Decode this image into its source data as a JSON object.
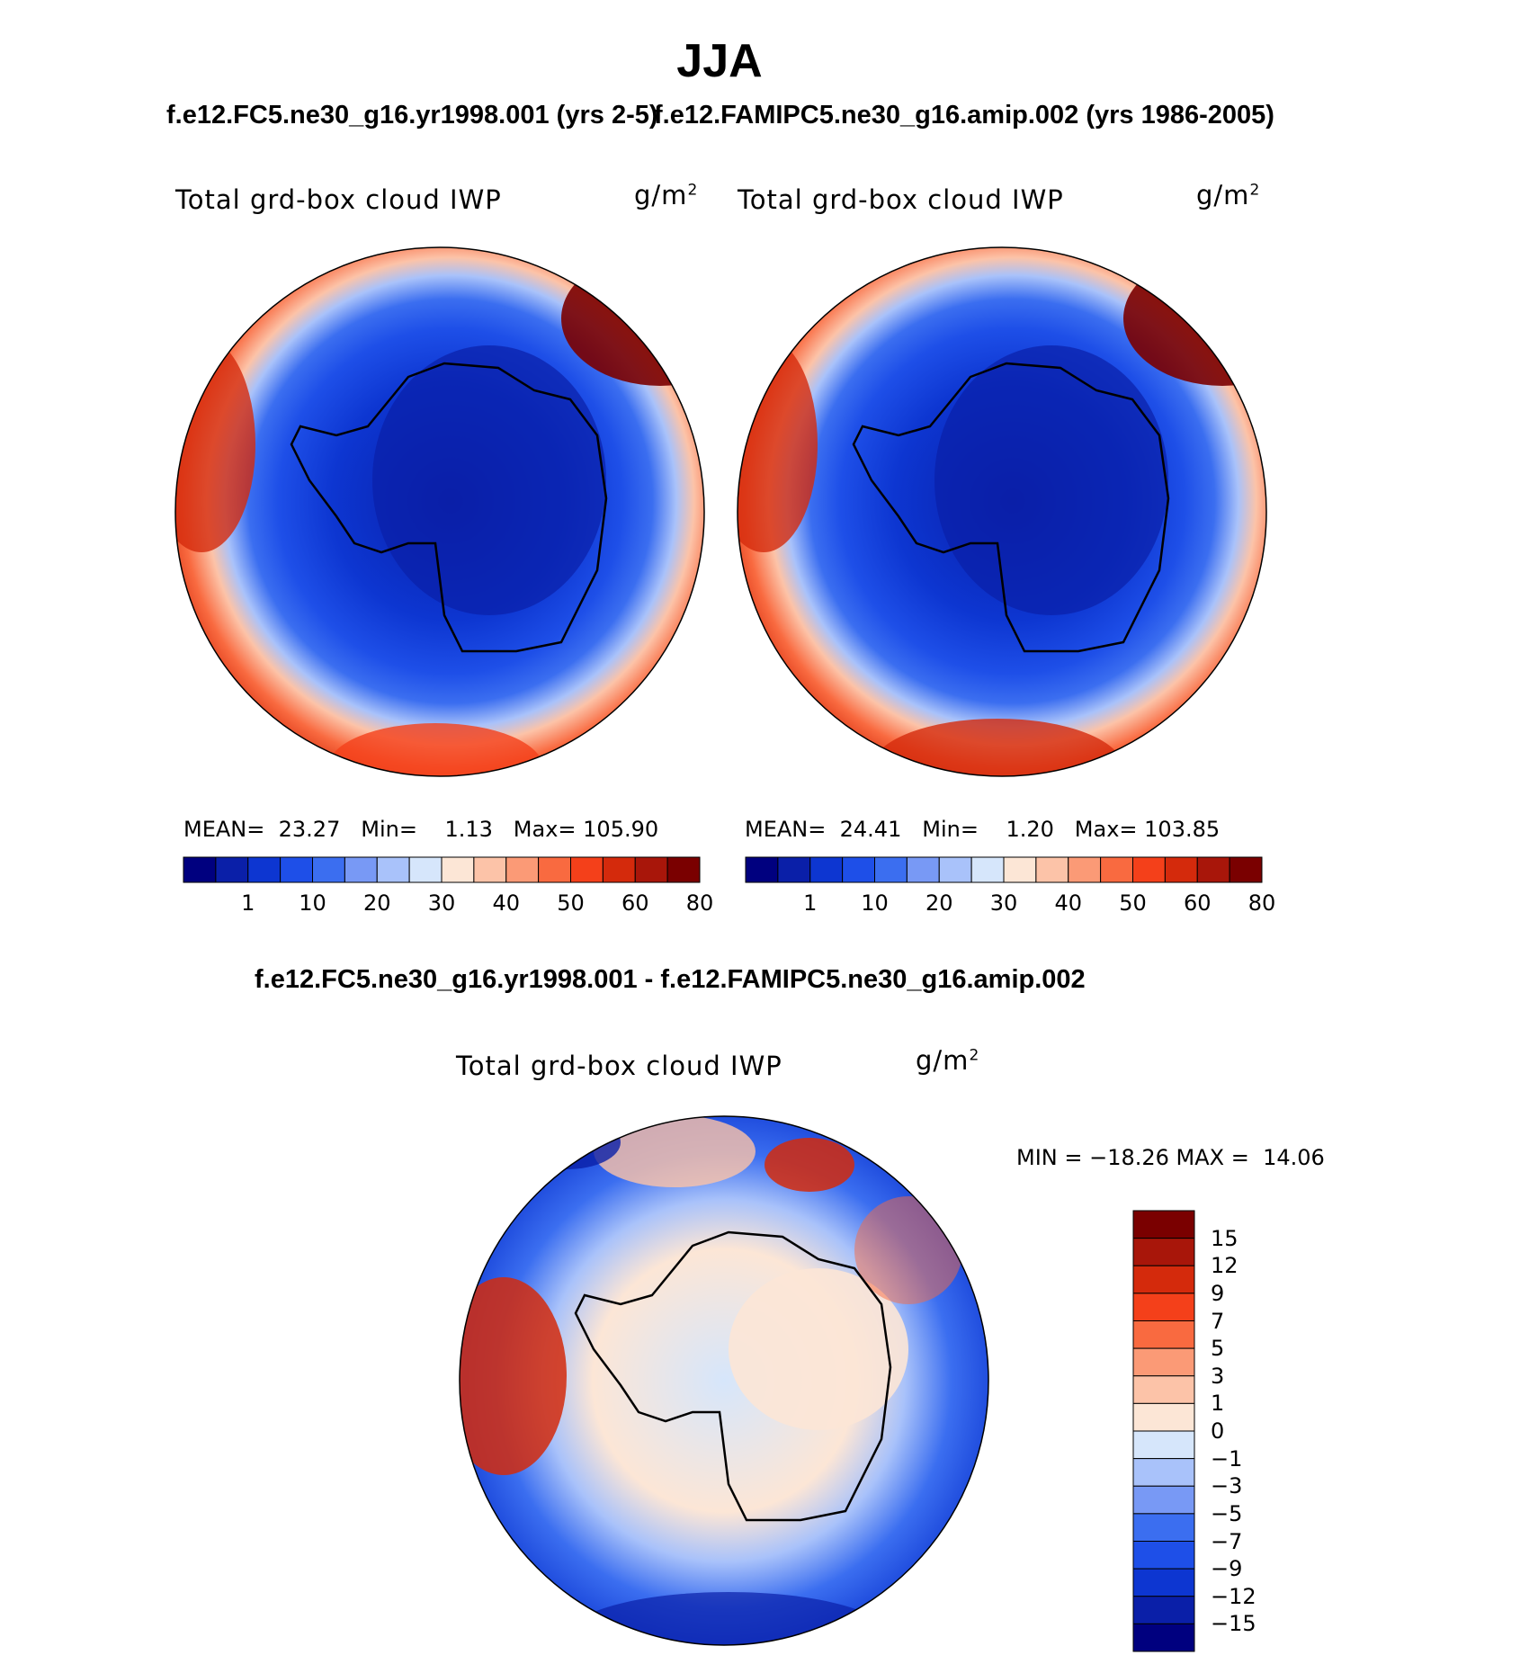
{
  "title": "JJA",
  "panels": [
    {
      "case": "f.e12.FC5.ne30_g16.yr1998.001 (yrs 2-5)",
      "variable": "Total grd-box cloud IWP",
      "units": "g/m",
      "units_exp": "2",
      "stats": {
        "mean_label": "MEAN=",
        "mean": "23.27",
        "min_label": "Min=",
        "min": "1.13",
        "max_label": "Max=",
        "max": "105.90"
      }
    },
    {
      "case": "f.e12.FAMIPC5.ne30_g16.amip.002 (yrs 1986-2005)",
      "variable": "Total grd-box cloud IWP",
      "units": "g/m",
      "units_exp": "2",
      "stats": {
        "mean_label": "MEAN=",
        "mean": "24.41",
        "min_label": "Min=",
        "min": "1.20",
        "max_label": "Max=",
        "max": "103.85"
      }
    }
  ],
  "colorbar_abs": {
    "colors": [
      "#00007f",
      "#0a1fa8",
      "#0d36d1",
      "#1e4fe8",
      "#3b6ef0",
      "#7899f5",
      "#a9c2fa",
      "#d6e6fb",
      "#fce6d6",
      "#fcc3a8",
      "#fb9a76",
      "#f96a40",
      "#f4401a",
      "#d42a0c",
      "#a8160a",
      "#7a0000"
    ],
    "tick_labels": [
      "1",
      "10",
      "20",
      "30",
      "40",
      "50",
      "60",
      "80"
    ]
  },
  "difference": {
    "title": "f.e12.FC5.ne30_g16.yr1998.001 - f.e12.FAMIPC5.ne30_g16.amip.002",
    "variable": "Total grd-box cloud IWP",
    "units": "g/m",
    "units_exp": "2",
    "minmax_text": "MIN = −18.26 MAX =  14.06"
  },
  "colorbar_diff": {
    "colors": [
      "#00007f",
      "#0a1fa8",
      "#0d36d1",
      "#1e4fe8",
      "#3b6ef0",
      "#7899f5",
      "#a9c2fa",
      "#d6e6fb",
      "#fce6d6",
      "#fcc3a8",
      "#fb9a76",
      "#f96a40",
      "#f4401a",
      "#d42a0c",
      "#a8160a",
      "#7a0000"
    ],
    "tick_labels": [
      "15",
      "12",
      "9",
      "7",
      "5",
      "3",
      "1",
      "0",
      "−1",
      "−3",
      "−5",
      "−7",
      "−9",
      "−12",
      "−15"
    ]
  }
}
